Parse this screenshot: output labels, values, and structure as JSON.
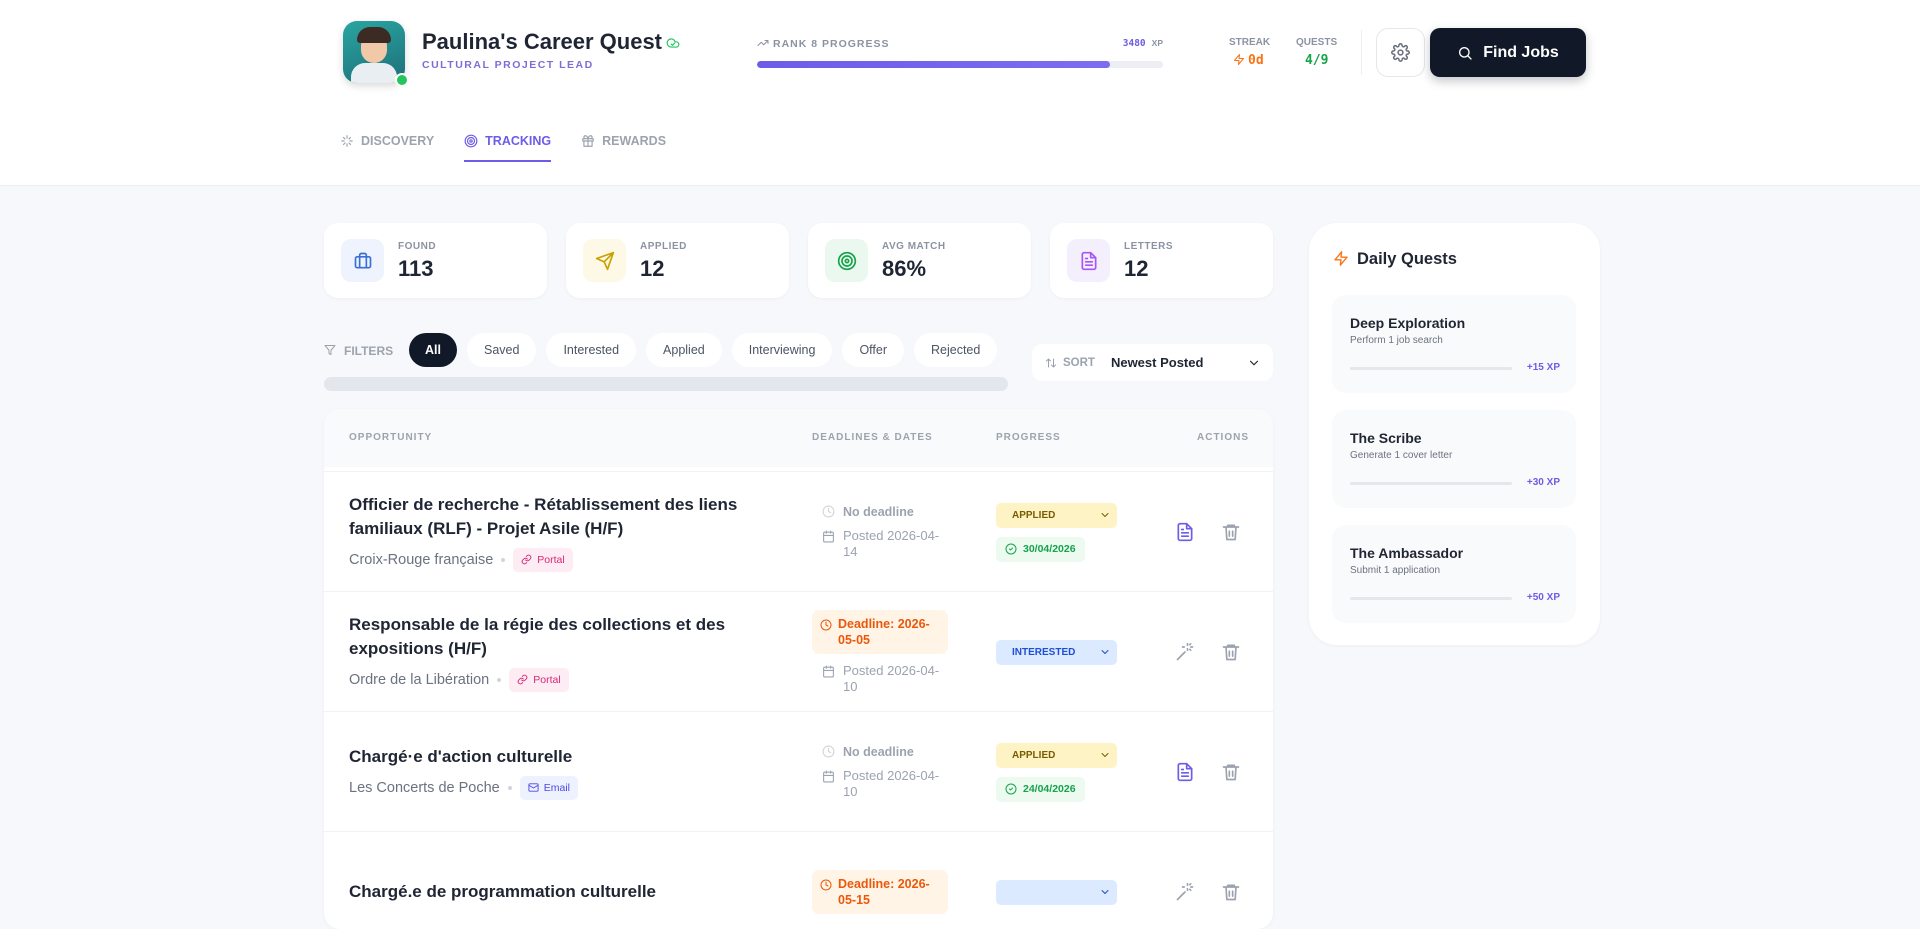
{
  "header": {
    "name": "Paulina's Career Quest",
    "role": "CULTURAL PROJECT LEAD",
    "rank_label": "RANK 8 PROGRESS",
    "xp_value": "3480",
    "xp_unit": "XP",
    "rank_progress_pct": 87,
    "streak_label": "STREAK",
    "streak_value": "0d",
    "quests_label": "QUESTS",
    "quests_value": "4/9",
    "button": "Find Jobs"
  },
  "nav": [
    {
      "label": "DISCOVERY",
      "active": false
    },
    {
      "label": "TRACKING",
      "active": true
    },
    {
      "label": "REWARDS",
      "active": false
    }
  ],
  "stats": [
    {
      "label": "FOUND",
      "value": "113",
      "icon": "briefcase"
    },
    {
      "label": "APPLIED",
      "value": "12",
      "icon": "send"
    },
    {
      "label": "AVG MATCH",
      "value": "86%",
      "icon": "target"
    },
    {
      "label": "LETTERS",
      "value": "12",
      "icon": "doc"
    }
  ],
  "filters": {
    "label": "FILTERS",
    "chips": [
      "All",
      "Saved",
      "Interested",
      "Applied",
      "Interviewing",
      "Offer",
      "Rejected"
    ],
    "active": 0
  },
  "sort": {
    "label": "SORT",
    "value": "Newest Posted"
  },
  "table": {
    "headers": [
      "OPPORTUNITY",
      "DEADLINES & DATES",
      "PROGRESS",
      "ACTIONS"
    ],
    "rows": [
      {
        "title": "Officier de recherche - Rétablissement des liens familiaux (RLF) - Projet Asile (H/F)",
        "company": "Croix-Rouge française",
        "channel": "Portal",
        "deadline": "No deadline",
        "has_deadline": false,
        "posted": "Posted 2026-04-14",
        "status": "APPLIED",
        "status_style": "applied",
        "date": "30/04/2026"
      },
      {
        "title": "Responsable de la régie des collections et des expositions (H/F)",
        "company": "Ordre de la Libération",
        "channel": "Portal",
        "deadline": "Deadline: 2026-05-05",
        "has_deadline": true,
        "posted": "Posted 2026-04-10",
        "status": "INTERESTED",
        "status_style": "interested"
      },
      {
        "title": "Chargé·e d'action culturelle",
        "company": "Les Concerts de Poche",
        "channel": "Email",
        "deadline": "No deadline",
        "has_deadline": false,
        "posted": "Posted 2026-04-10",
        "status": "APPLIED",
        "status_style": "applied",
        "date": "24/04/2026"
      },
      {
        "title": "Chargé.e de programmation culturelle",
        "deadline": "Deadline: 2026-05-15",
        "has_deadline": true,
        "status_style": "interested"
      }
    ]
  },
  "quests": {
    "title": "Daily Quests",
    "items": [
      {
        "name": "Deep Exploration",
        "desc": "Perform 1 job search",
        "xp": "+15 XP"
      },
      {
        "name": "The Scribe",
        "desc": "Generate 1 cover letter",
        "xp": "+30 XP"
      },
      {
        "name": "The Ambassador",
        "desc": "Submit 1 application",
        "xp": "+50 XP"
      }
    ]
  }
}
